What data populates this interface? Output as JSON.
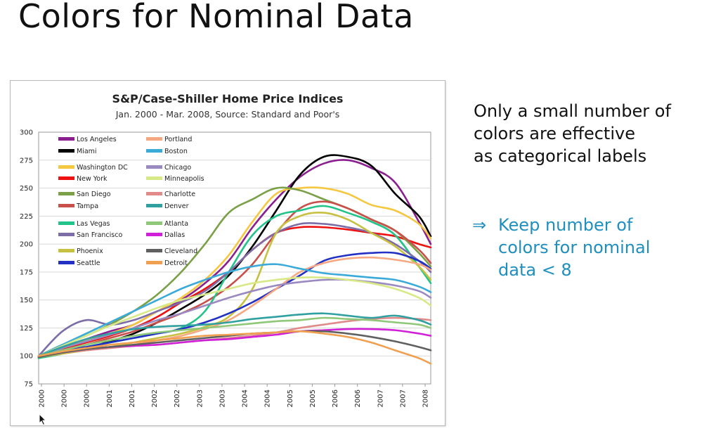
{
  "slide": {
    "title": "Colors for Nominal Data",
    "note_primary": "Only a small number of\ncolors are effective\nas categorical labels",
    "note_secondary_arrow": "⇒",
    "note_secondary": "Keep number of\ncolors for nominal\ndata < 8",
    "accent_color": "#1f8fbf"
  },
  "chart_data": {
    "type": "line",
    "title": "S&P/Case-Shiller Home Price Indices",
    "subtitle": "Jan. 2000 - Mar. 2008, Source: Standard and Poor's",
    "xlabel": "",
    "ylabel": "",
    "ylim": [
      75,
      300
    ],
    "xlim": [
      2000.0,
      2008.25
    ],
    "yticks": [
      "75",
      "100",
      "125",
      "150",
      "175",
      "200",
      "225",
      "250",
      "275",
      "300"
    ],
    "xticks": [
      "2000",
      "2000",
      "2000",
      "2001",
      "2001",
      "2002",
      "2002",
      "2003",
      "2003",
      "2004",
      "2004",
      "2005",
      "2005",
      "2006",
      "2006",
      "2007",
      "2007",
      "2008"
    ],
    "grid": "horizontal",
    "legend_position": "top-left",
    "x": [
      2000.0,
      2000.5,
      2001.0,
      2001.5,
      2002.0,
      2002.5,
      2003.0,
      2003.5,
      2004.0,
      2004.5,
      2005.0,
      2005.5,
      2006.0,
      2006.5,
      2007.0,
      2007.5,
      2008.0,
      2008.25
    ],
    "series": [
      {
        "name": "Los Angeles",
        "color": "#8b1f8f",
        "values": [
          100,
          108,
          115,
          122,
          128,
          140,
          150,
          165,
          185,
          215,
          240,
          260,
          272,
          275,
          268,
          255,
          220,
          200
        ]
      },
      {
        "name": "Miami",
        "color": "#000000",
        "values": [
          99,
          103,
          107,
          113,
          120,
          130,
          142,
          155,
          172,
          198,
          230,
          262,
          278,
          278,
          270,
          245,
          225,
          207
        ]
      },
      {
        "name": "Washington DC",
        "color": "#f5c842",
        "values": [
          100,
          106,
          114,
          120,
          128,
          140,
          152,
          168,
          190,
          220,
          245,
          250,
          250,
          245,
          235,
          230,
          218,
          205
        ]
      },
      {
        "name": "New York",
        "color": "#ee1111",
        "values": [
          98,
          106,
          112,
          118,
          125,
          135,
          148,
          160,
          175,
          195,
          210,
          215,
          215,
          213,
          210,
          207,
          200,
          197
        ]
      },
      {
        "name": "San Diego",
        "color": "#7aa048",
        "values": [
          100,
          110,
          118,
          128,
          140,
          155,
          175,
          200,
          228,
          240,
          250,
          248,
          240,
          232,
          222,
          212,
          192,
          180
        ]
      },
      {
        "name": "Tampa",
        "color": "#c9504a",
        "values": [
          100,
          104,
          110,
          116,
          122,
          130,
          138,
          148,
          162,
          182,
          210,
          232,
          238,
          232,
          222,
          212,
          195,
          183
        ]
      },
      {
        "name": "Las Vegas",
        "color": "#22c48a",
        "values": [
          98,
          102,
          108,
          112,
          116,
          120,
          125,
          140,
          175,
          208,
          225,
          230,
          234,
          228,
          220,
          208,
          180,
          165
        ]
      },
      {
        "name": "San Francisco",
        "color": "#7c6da8",
        "values": [
          100,
          122,
          132,
          128,
          132,
          140,
          148,
          158,
          175,
          195,
          210,
          218,
          218,
          215,
          210,
          200,
          185,
          175
        ]
      },
      {
        "name": "Phoenix",
        "color": "#c8c040",
        "values": [
          99,
          102,
          105,
          108,
          112,
          116,
          120,
          126,
          135,
          160,
          210,
          225,
          228,
          222,
          210,
          198,
          180,
          168
        ]
      },
      {
        "name": "Seattle",
        "color": "#2230c4",
        "values": [
          99,
          105,
          108,
          112,
          116,
          120,
          124,
          130,
          138,
          148,
          160,
          172,
          185,
          190,
          192,
          192,
          185,
          178
        ]
      },
      {
        "name": "Portland",
        "color": "#f5a882",
        "values": [
          100,
          103,
          106,
          108,
          110,
          114,
          118,
          124,
          132,
          145,
          160,
          175,
          183,
          187,
          188,
          186,
          182,
          177
        ]
      },
      {
        "name": "Boston",
        "color": "#3aaad8",
        "values": [
          100,
          110,
          120,
          130,
          140,
          150,
          160,
          168,
          175,
          180,
          182,
          178,
          174,
          172,
          170,
          168,
          162,
          157
        ]
      },
      {
        "name": "Chicago",
        "color": "#9b8ac0",
        "values": [
          100,
          107,
          113,
          119,
          125,
          132,
          138,
          145,
          152,
          158,
          163,
          166,
          168,
          168,
          166,
          163,
          158,
          152
        ]
      },
      {
        "name": "Minneapolis",
        "color": "#d8ea88",
        "values": [
          100,
          109,
          118,
          127,
          135,
          143,
          150,
          155,
          160,
          165,
          168,
          170,
          170,
          168,
          165,
          160,
          152,
          145
        ]
      },
      {
        "name": "Charlotte",
        "color": "#e08a8a",
        "values": [
          100,
          103,
          105,
          107,
          109,
          110,
          112,
          114,
          116,
          118,
          121,
          125,
          128,
          131,
          133,
          134,
          133,
          132
        ]
      },
      {
        "name": "Denver",
        "color": "#30a0a0",
        "values": [
          100,
          108,
          115,
          120,
          124,
          126,
          127,
          128,
          130,
          133,
          135,
          137,
          138,
          136,
          134,
          136,
          132,
          128
        ]
      },
      {
        "name": "Atlanta",
        "color": "#8fc878",
        "values": [
          100,
          105,
          110,
          114,
          118,
          121,
          123,
          125,
          127,
          129,
          131,
          132,
          134,
          133,
          132,
          130,
          128,
          125
        ]
      },
      {
        "name": "Dallas",
        "color": "#d020d8",
        "values": [
          99,
          103,
          106,
          108,
          109,
          110,
          112,
          114,
          115,
          117,
          119,
          122,
          123,
          124,
          124,
          123,
          120,
          118
        ]
      },
      {
        "name": "Cleveland",
        "color": "#606060",
        "values": [
          99,
          103,
          106,
          108,
          110,
          112,
          114,
          116,
          118,
          120,
          121,
          122,
          122,
          120,
          117,
          113,
          108,
          105
        ]
      },
      {
        "name": "Detroit",
        "color": "#f0a050",
        "values": [
          100,
          104,
          107,
          110,
          112,
          114,
          116,
          118,
          119,
          120,
          121,
          122,
          120,
          117,
          112,
          105,
          98,
          93
        ]
      }
    ]
  }
}
